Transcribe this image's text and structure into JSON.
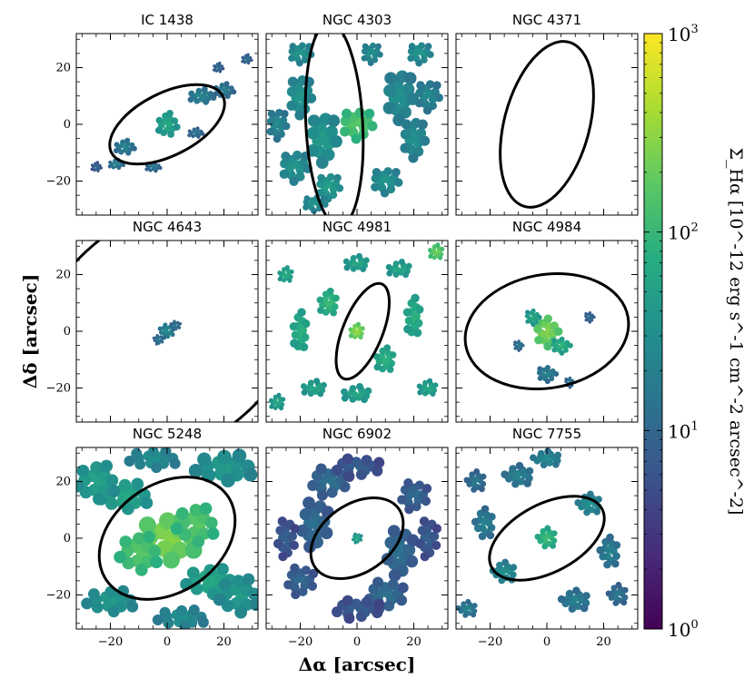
{
  "chart_data": {
    "type": "heatmap",
    "description_free": true,
    "xlabel": "Δα [arcsec]",
    "ylabel": "Δδ [arcsec]",
    "xlim": [
      -32,
      32
    ],
    "ylim": [
      -32,
      32
    ],
    "xticks": [
      -20,
      0,
      20
    ],
    "yticks": [
      -20,
      0,
      20
    ],
    "colorbar": {
      "label": "Σ_Hα [10^-12 erg s^-1 cm^-2 arcsec^-2]",
      "scale": "log",
      "range": [
        1,
        1000
      ],
      "ticks": [
        "10^0",
        "10^1",
        "10^2",
        "10^3"
      ],
      "colormap": "viridis"
    },
    "panels": [
      {
        "name": "IC 1438",
        "ellipse": {
          "cx": 0,
          "cy": 0,
          "a": 22,
          "b": 11,
          "angle": 27
        },
        "blobs": [
          [
            0,
            0,
            4,
            5,
            60
          ],
          [
            -15,
            -8,
            4,
            3,
            20
          ],
          [
            -18,
            -14,
            3,
            2,
            18
          ],
          [
            12,
            10,
            5,
            3,
            22
          ],
          [
            20,
            12,
            4,
            3,
            18
          ],
          [
            -5,
            -15,
            3,
            2,
            15
          ],
          [
            10,
            -3,
            3,
            2,
            15
          ],
          [
            18,
            20,
            2,
            2,
            12
          ],
          [
            -25,
            -15,
            2,
            2,
            10
          ],
          [
            28,
            23,
            2,
            2,
            12
          ]
        ]
      },
      {
        "name": "NGC 4303",
        "ellipse": {
          "cx": -8,
          "cy": 0,
          "a": 36,
          "b": 10,
          "angle": 93
        },
        "blobs": [
          [
            0,
            0,
            7,
            6,
            150
          ],
          [
            -12,
            -5,
            6,
            10,
            40
          ],
          [
            -20,
            10,
            5,
            8,
            35
          ],
          [
            -22,
            -15,
            6,
            6,
            35
          ],
          [
            -10,
            -22,
            5,
            5,
            45
          ],
          [
            15,
            10,
            6,
            10,
            30
          ],
          [
            20,
            -5,
            5,
            8,
            30
          ],
          [
            10,
            -20,
            6,
            5,
            35
          ],
          [
            -20,
            25,
            5,
            4,
            35
          ],
          [
            22,
            25,
            5,
            4,
            35
          ],
          [
            -15,
            -28,
            5,
            3,
            35
          ],
          [
            5,
            25,
            4,
            4,
            30
          ],
          [
            25,
            10,
            5,
            6,
            25
          ],
          [
            -28,
            0,
            4,
            6,
            25
          ]
        ]
      },
      {
        "name": "NGC 4371",
        "ellipse": {
          "cx": 0,
          "cy": 0,
          "a": 30,
          "b": 15,
          "angle": 75
        },
        "blobs": []
      },
      {
        "name": "NGC 4643",
        "ellipse": {
          "cx": 0,
          "cy": 0,
          "a": 55,
          "b": 40,
          "angle": 40
        },
        "blobs": [
          [
            0,
            0,
            3,
            3,
            25
          ],
          [
            -3,
            -3,
            2,
            2,
            15
          ],
          [
            3,
            2,
            2,
            2,
            15
          ]
        ]
      },
      {
        "name": "NGC 4981",
        "ellipse": {
          "cx": 2,
          "cy": 0,
          "a": 18,
          "b": 7,
          "angle": 68
        },
        "blobs": [
          [
            0,
            0,
            3,
            3,
            300
          ],
          [
            -10,
            10,
            4,
            5,
            100
          ],
          [
            10,
            -10,
            4,
            5,
            80
          ],
          [
            -20,
            0,
            3,
            8,
            80
          ],
          [
            20,
            5,
            3,
            8,
            80
          ],
          [
            -15,
            -20,
            5,
            3,
            60
          ],
          [
            15,
            22,
            5,
            3,
            60
          ],
          [
            -25,
            20,
            3,
            3,
            70
          ],
          [
            25,
            -20,
            4,
            3,
            60
          ],
          [
            28,
            28,
            3,
            3,
            200
          ],
          [
            -28,
            -25,
            3,
            3,
            60
          ],
          [
            0,
            -22,
            6,
            3,
            60
          ],
          [
            0,
            24,
            5,
            3,
            60
          ]
        ]
      },
      {
        "name": "NGC 4984",
        "ellipse": {
          "cx": 0,
          "cy": 0,
          "a": 29,
          "b": 20,
          "angle": 10
        },
        "blobs": [
          [
            0,
            0,
            5,
            6,
            250
          ],
          [
            5,
            -5,
            4,
            3,
            80
          ],
          [
            -5,
            5,
            3,
            3,
            60
          ],
          [
            0,
            -15,
            4,
            3,
            20
          ],
          [
            -10,
            -5,
            2,
            2,
            15
          ],
          [
            8,
            -18,
            2,
            2,
            15
          ],
          [
            15,
            5,
            2,
            2,
            12
          ]
        ]
      },
      {
        "name": "NGC 5248",
        "ellipse": {
          "cx": 0,
          "cy": 0,
          "a": 26,
          "b": 19,
          "angle": 35
        },
        "blobs": [
          [
            0,
            0,
            12,
            10,
            250
          ],
          [
            -10,
            -5,
            8,
            8,
            150
          ],
          [
            10,
            5,
            8,
            8,
            150
          ],
          [
            -15,
            15,
            10,
            6,
            60
          ],
          [
            15,
            -15,
            10,
            6,
            60
          ],
          [
            -25,
            20,
            8,
            8,
            50
          ],
          [
            20,
            25,
            12,
            6,
            40
          ],
          [
            -20,
            -22,
            10,
            5,
            40
          ],
          [
            25,
            -20,
            8,
            8,
            40
          ],
          [
            -5,
            28,
            10,
            4,
            30
          ],
          [
            5,
            -28,
            10,
            4,
            30
          ]
        ]
      },
      {
        "name": "NGC 6902",
        "ellipse": {
          "cx": 0,
          "cy": 0,
          "a": 18,
          "b": 12,
          "angle": 35
        },
        "blobs": [
          [
            0,
            0,
            2,
            2,
            60
          ],
          [
            -15,
            5,
            6,
            10,
            12
          ],
          [
            15,
            -5,
            6,
            10,
            12
          ],
          [
            -10,
            20,
            8,
            6,
            12
          ],
          [
            10,
            -20,
            8,
            6,
            12
          ],
          [
            -20,
            -15,
            6,
            6,
            10
          ],
          [
            20,
            15,
            6,
            6,
            10
          ],
          [
            0,
            25,
            10,
            4,
            8
          ],
          [
            0,
            -25,
            10,
            4,
            8
          ],
          [
            -25,
            0,
            4,
            8,
            8
          ],
          [
            25,
            0,
            4,
            8,
            8
          ]
        ]
      },
      {
        "name": "NGC 7755",
        "ellipse": {
          "cx": 0,
          "cy": 0,
          "a": 22,
          "b": 12,
          "angle": 28
        },
        "blobs": [
          [
            0,
            0,
            4,
            4,
            100
          ],
          [
            -15,
            -12,
            5,
            4,
            30
          ],
          [
            15,
            12,
            5,
            4,
            30
          ],
          [
            -22,
            5,
            4,
            6,
            20
          ],
          [
            22,
            -5,
            4,
            6,
            20
          ],
          [
            -10,
            22,
            6,
            4,
            20
          ],
          [
            10,
            -22,
            6,
            4,
            20
          ],
          [
            -25,
            20,
            4,
            4,
            15
          ],
          [
            25,
            -20,
            4,
            4,
            15
          ],
          [
            0,
            28,
            6,
            3,
            25
          ],
          [
            -28,
            -25,
            4,
            3,
            20
          ]
        ]
      }
    ]
  }
}
